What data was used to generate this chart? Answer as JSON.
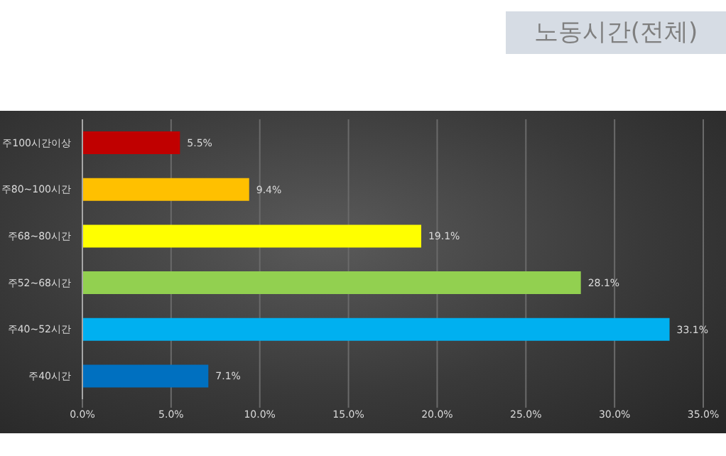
{
  "chart_data": {
    "type": "bar",
    "orientation": "horizontal",
    "title": "노동시간(전체)",
    "categories": [
      "주100시간이상",
      "주80~100시간",
      "주68~80시간",
      "주52~68시간",
      "주40~52시간",
      "주40시간"
    ],
    "values": [
      5.5,
      9.4,
      19.1,
      28.1,
      33.1,
      7.1
    ],
    "colors": [
      "#c00000",
      "#ffc000",
      "#ffff00",
      "#92d050",
      "#00b0f0",
      "#0070c0"
    ],
    "value_labels": [
      "5.5%",
      "9.4%",
      "19.1%",
      "28.1%",
      "33.1%",
      "7.1%"
    ],
    "xlim": [
      0,
      35
    ],
    "xticks": [
      {
        "value": 0,
        "label": "0.0%"
      },
      {
        "value": 5,
        "label": "5.0%"
      },
      {
        "value": 10,
        "label": "10.0%"
      },
      {
        "value": 15,
        "label": "15.0%"
      },
      {
        "value": 20,
        "label": "20.0%"
      },
      {
        "value": 25,
        "label": "25.0%"
      },
      {
        "value": 30,
        "label": "30.0%"
      },
      {
        "value": 35,
        "label": "35.0%"
      }
    ],
    "grid": "x",
    "legend": false
  }
}
